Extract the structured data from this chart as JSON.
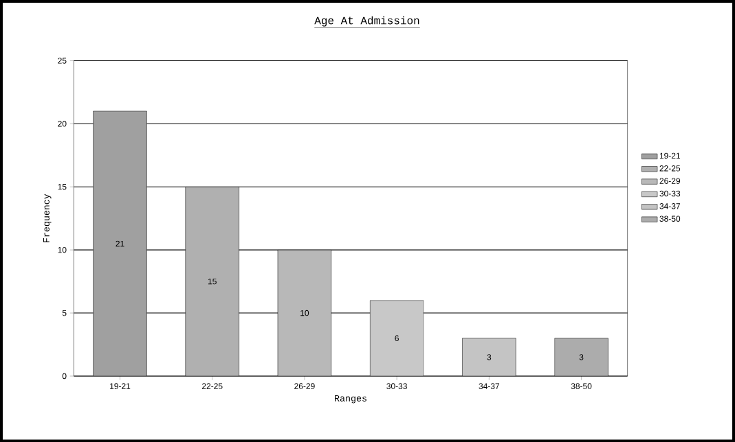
{
  "chart_data": {
    "type": "bar",
    "title": "Age At Admission",
    "xlabel": "Ranges",
    "ylabel": "Frequency",
    "categories": [
      "19-21",
      "22-25",
      "26-29",
      "30-33",
      "34-37",
      "38-50"
    ],
    "series": [
      {
        "name": "19-21",
        "color": "#a0a0a0",
        "values": [
          21,
          null,
          null,
          null,
          null,
          null
        ]
      },
      {
        "name": "22-25",
        "color": "#b0b0b0",
        "values": [
          null,
          15,
          null,
          null,
          null,
          null
        ]
      },
      {
        "name": "26-29",
        "color": "#b8b8b8",
        "values": [
          null,
          null,
          10,
          null,
          null,
          null
        ]
      },
      {
        "name": "30-33",
        "color": "#c8c8c8",
        "values": [
          null,
          null,
          null,
          6,
          null,
          null
        ]
      },
      {
        "name": "34-37",
        "color": "#c4c4c4",
        "values": [
          null,
          null,
          null,
          null,
          3,
          null
        ]
      },
      {
        "name": "38-50",
        "color": "#acacac",
        "values": [
          null,
          null,
          null,
          null,
          null,
          3
        ]
      }
    ],
    "ylim": [
      0,
      25
    ],
    "yticks": [
      0,
      5,
      10,
      15,
      20,
      25
    ],
    "grid": "y",
    "legend": "right",
    "data_labels": true
  }
}
